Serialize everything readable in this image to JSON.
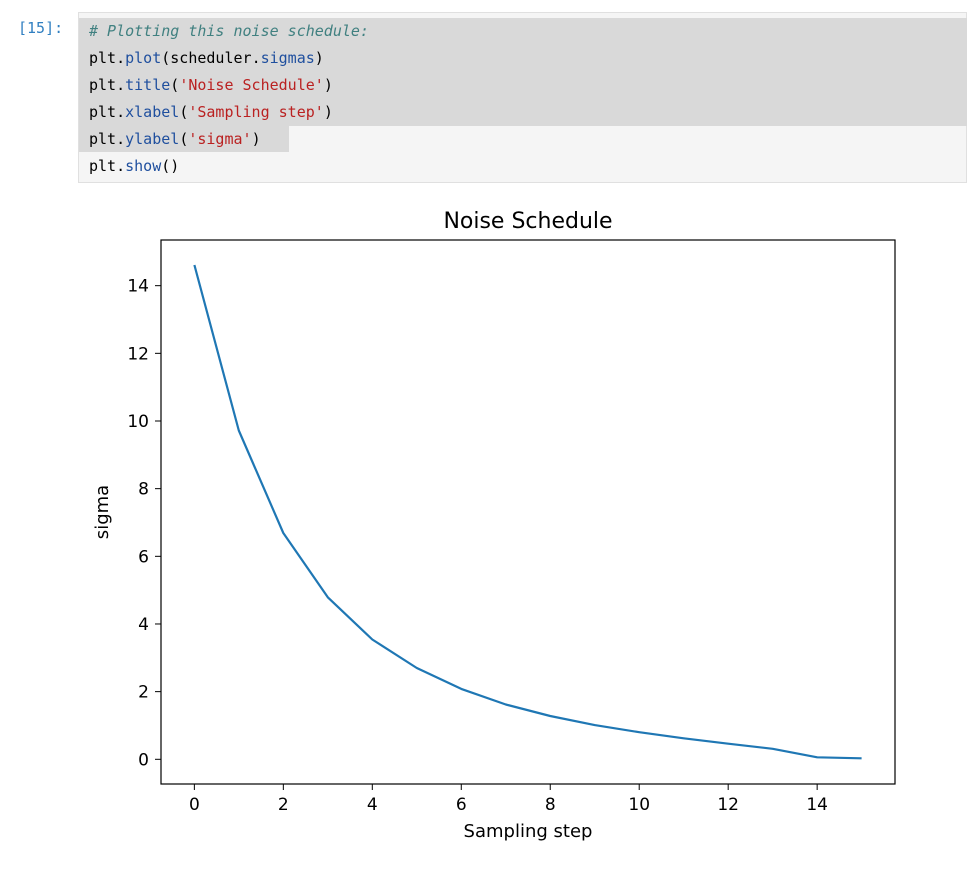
{
  "cell": {
    "prompt": "[15]:",
    "code_lines": [
      [
        {
          "t": "# Plotting this noise schedule:",
          "c": "comment"
        }
      ],
      [
        {
          "t": "plt",
          "c": "plain"
        },
        {
          "t": ".",
          "c": "plain"
        },
        {
          "t": "plot",
          "c": "attr"
        },
        {
          "t": "(scheduler",
          "c": "plain"
        },
        {
          "t": ".",
          "c": "plain"
        },
        {
          "t": "sigmas",
          "c": "attr"
        },
        {
          "t": ")",
          "c": "plain"
        }
      ],
      [
        {
          "t": "plt",
          "c": "plain"
        },
        {
          "t": ".",
          "c": "plain"
        },
        {
          "t": "title",
          "c": "attr"
        },
        {
          "t": "(",
          "c": "plain"
        },
        {
          "t": "'Noise Schedule'",
          "c": "str"
        },
        {
          "t": ")",
          "c": "plain"
        }
      ],
      [
        {
          "t": "plt",
          "c": "plain"
        },
        {
          "t": ".",
          "c": "plain"
        },
        {
          "t": "xlabel",
          "c": "attr"
        },
        {
          "t": "(",
          "c": "plain"
        },
        {
          "t": "'Sampling step'",
          "c": "str"
        },
        {
          "t": ")",
          "c": "plain"
        }
      ],
      [
        {
          "t": "plt",
          "c": "plain"
        },
        {
          "t": ".",
          "c": "plain"
        },
        {
          "t": "ylabel",
          "c": "attr"
        },
        {
          "t": "(",
          "c": "plain"
        },
        {
          "t": "'sigma'",
          "c": "str"
        },
        {
          "t": ")",
          "c": "plain"
        }
      ],
      [
        {
          "t": "plt",
          "c": "plain"
        },
        {
          "t": ".",
          "c": "plain"
        },
        {
          "t": "show",
          "c": "attr"
        },
        {
          "t": "()",
          "c": "plain"
        }
      ]
    ]
  },
  "chart_data": {
    "type": "line",
    "title": "Noise Schedule",
    "xlabel": "Sampling step",
    "ylabel": "sigma",
    "xlim": [
      -0.75,
      15.75
    ],
    "ylim": [
      -0.73,
      15.35
    ],
    "xticks": [
      0,
      2,
      4,
      6,
      8,
      10,
      12,
      14
    ],
    "yticks": [
      0,
      2,
      4,
      6,
      8,
      10,
      12,
      14
    ],
    "series": [
      {
        "color": "#1f77b4",
        "x": [
          0,
          1,
          2,
          3,
          4,
          5,
          6,
          7,
          8,
          9,
          10,
          11,
          12,
          13,
          14,
          15
        ],
        "values": [
          14.61,
          9.72,
          6.69,
          4.79,
          3.54,
          2.7,
          2.08,
          1.62,
          1.28,
          1.01,
          0.8,
          0.62,
          0.46,
          0.31,
          0.06,
          0.03
        ]
      }
    ],
    "grid": false,
    "legend": "none"
  }
}
